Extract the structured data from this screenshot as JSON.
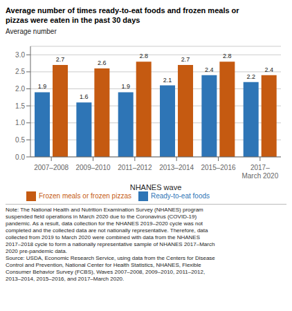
{
  "chart_data": {
    "type": "bar",
    "title": "Average number of times ready-to-eat foods and frozen meals or\npizzas were eaten in the past 30 days",
    "ylabel": "Average number",
    "xlabel": "NHANES wave",
    "categories": [
      "2007–2008",
      "2009–2010",
      "2011–2012",
      "2013–2014",
      "2015–2016",
      "2017–\nMarch 2020"
    ],
    "series": [
      {
        "name": "Ready-to-eat foods",
        "color": "#2e75b6",
        "values": [
          1.9,
          1.6,
          1.9,
          2.1,
          2.4,
          2.2
        ]
      },
      {
        "name": "Frozen meals or frozen pizzas",
        "color": "#c55a11",
        "values": [
          2.7,
          2.6,
          2.8,
          2.7,
          2.8,
          2.4
        ]
      }
    ],
    "ylim": [
      0.0,
      3.25
    ],
    "yticks": [
      {
        "value": 0.0,
        "label": "0.0"
      },
      0.5,
      {
        "value": 1.0,
        "label": "1.0"
      },
      1.5,
      {
        "value": 2.0,
        "label": "2.0"
      },
      2.5,
      {
        "value": 3.0,
        "label": "3.0"
      }
    ],
    "grid": true,
    "legend": "bottom",
    "data_labels": true,
    "annotations": [
      "Note: The National Health and Nutrition Examination Survey (NHANES) program\nsuspended field operations in March 2020 due to the Coronavirus (COVID-19)\npandemic. As a result, data collection for the NHANES 2019–2020 cycle was not\ncompleted and the collected data are not nationally representative. Therefore, data\ncollected from 2019 to March 2020 were combined with data from the NHANES\n2017–2018 cycle to form a nationally representative sample of NHANES 2017–March\n2020 pre-pandemic data.\nSource: USDA, Economic Research Service, using data from the Centers for Disease\nControl and Prevention, National Center for Health Statistics, NHANES, Flexible\nConsumer Behavior Survey (FCBS), Waves 2007–2008, 2009–2010, 2011–2012,\n2013–2014, 2015–2016, and 2017–March 2020."
    ]
  }
}
